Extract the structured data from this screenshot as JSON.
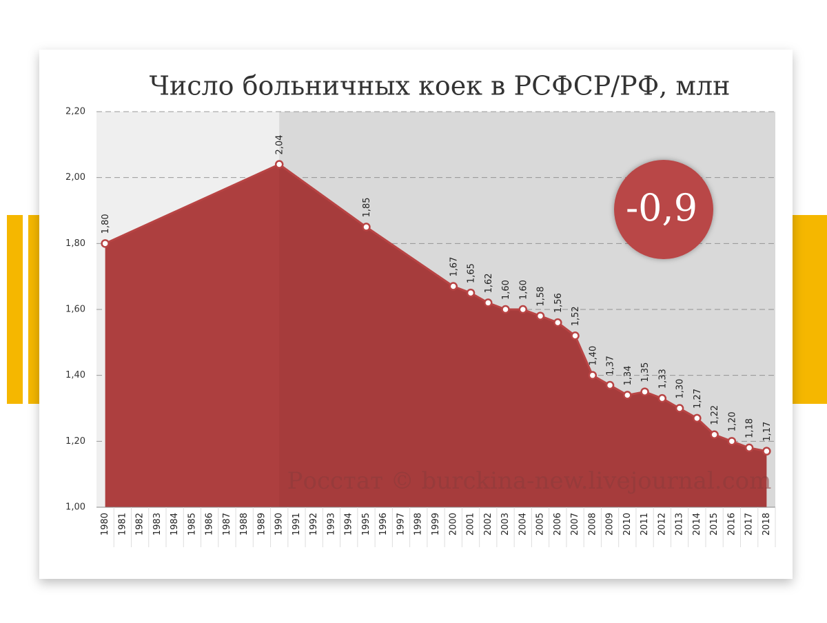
{
  "chart_data": {
    "type": "area",
    "title": "Число больничных коек в РСФСР/РФ, млн",
    "annotation": "-0,9",
    "source": "Росстат © burckina-new.livejournal.com",
    "x": [
      1980,
      1990,
      1995,
      2000,
      2001,
      2002,
      2003,
      2004,
      2005,
      2006,
      2007,
      2008,
      2009,
      2010,
      2011,
      2012,
      2013,
      2014,
      2015,
      2016,
      2017,
      2018
    ],
    "values": [
      1.8,
      2.04,
      1.85,
      1.67,
      1.65,
      1.62,
      1.6,
      1.6,
      1.58,
      1.56,
      1.52,
      1.4,
      1.37,
      1.34,
      1.35,
      1.33,
      1.3,
      1.27,
      1.22,
      1.2,
      1.18,
      1.17
    ],
    "value_labels": [
      "1,80",
      "2,04",
      "1,85",
      "1,67",
      "1,65",
      "1,62",
      "1,60",
      "1,60",
      "1,58",
      "1,56",
      "1,52",
      "1,40",
      "1,37",
      "1,34",
      "1,35",
      "1,33",
      "1,30",
      "1,27",
      "1,22",
      "1,20",
      "1,18",
      "1,17"
    ],
    "color": "#ad3f3f",
    "xlim": [
      1979.5,
      2018.5
    ],
    "xticks": [
      1980,
      1981,
      1982,
      1983,
      1984,
      1985,
      1986,
      1987,
      1988,
      1989,
      1990,
      1991,
      1992,
      1993,
      1994,
      1995,
      1996,
      1997,
      1998,
      1999,
      2000,
      2001,
      2002,
      2003,
      2004,
      2005,
      2006,
      2007,
      2008,
      2009,
      2010,
      2011,
      2012,
      2013,
      2014,
      2015,
      2016,
      2017,
      2018
    ],
    "ylim": [
      1,
      2.2
    ],
    "yticks": [
      {
        "value": 1,
        "label": "1,00"
      },
      {
        "value": 1.2,
        "label": "1,20"
      },
      {
        "value": 1.4,
        "label": "1,40"
      },
      {
        "value": 1.6,
        "label": "1,60"
      },
      {
        "value": 1.8,
        "label": "1,80"
      },
      {
        "value": 2,
        "label": "2,00"
      },
      {
        "value": 2.2,
        "label": "2,20"
      }
    ],
    "grid": true
  }
}
